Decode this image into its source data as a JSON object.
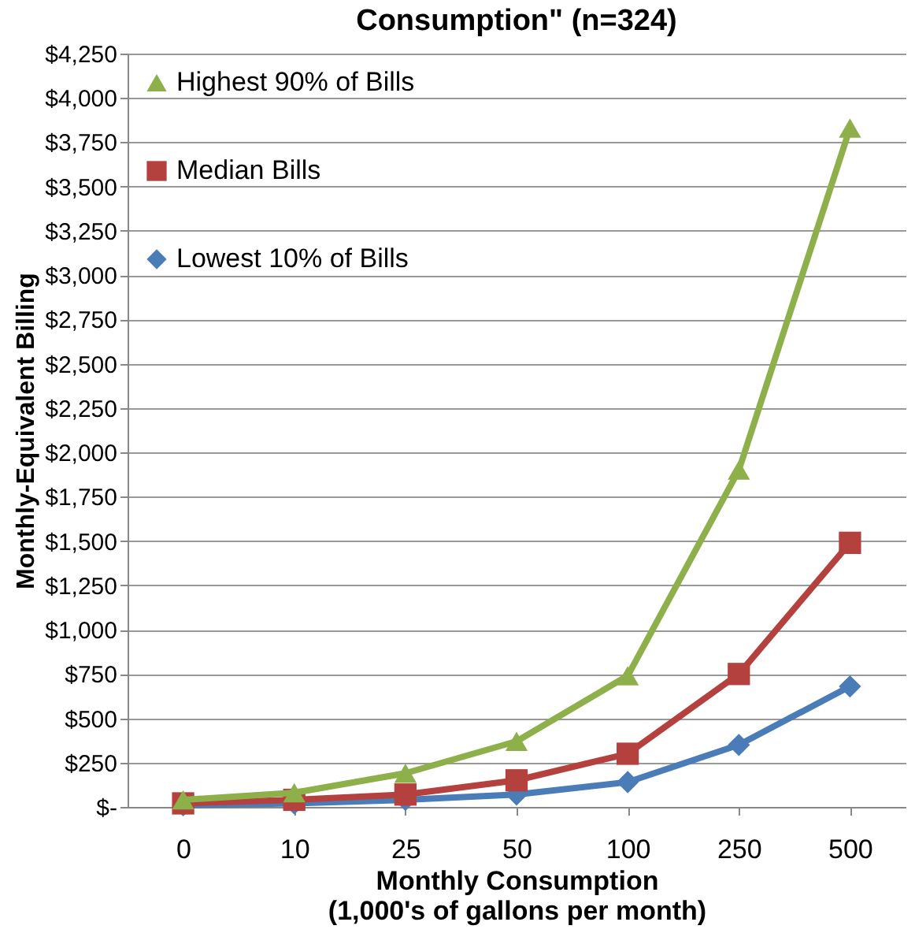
{
  "chart_data": {
    "type": "line",
    "title": "Consumption\" (n=324)",
    "xlabel": "Monthly Consumption\n(1,000's of gallons per month)",
    "ylabel": "Monthly-Equivalent Billing",
    "categories": [
      "0",
      "10",
      "25",
      "50",
      "100",
      "250",
      "500"
    ],
    "series": [
      {
        "name": "Highest 90% of Bills",
        "color": "#8eb04a",
        "marker": "triangle",
        "values": [
          40,
          80,
          190,
          370,
          740,
          1900,
          3830
        ]
      },
      {
        "name": "Median Bills",
        "color": "#b5413f",
        "marker": "square",
        "values": [
          20,
          40,
          70,
          150,
          300,
          750,
          1490
        ]
      },
      {
        "name": "Lowest 10% of Bills",
        "color": "#4a7db7",
        "marker": "diamond",
        "values": [
          10,
          20,
          40,
          70,
          140,
          350,
          680
        ]
      }
    ],
    "ylim": [
      0,
      4250
    ],
    "yticks": [
      {
        "value": 0,
        "label": "$-"
      },
      {
        "value": 250,
        "label": "$250"
      },
      {
        "value": 500,
        "label": "$500"
      },
      {
        "value": 750,
        "label": "$750"
      },
      {
        "value": 1000,
        "label": "$1,000"
      },
      {
        "value": 1250,
        "label": "$1,250"
      },
      {
        "value": 1500,
        "label": "$1,500"
      },
      {
        "value": 1750,
        "label": "$1,750"
      },
      {
        "value": 2000,
        "label": "$2,000"
      },
      {
        "value": 2250,
        "label": "$2,250"
      },
      {
        "value": 2500,
        "label": "$2,500"
      },
      {
        "value": 2750,
        "label": "$2,750"
      },
      {
        "value": 3000,
        "label": "$3,000"
      },
      {
        "value": 3250,
        "label": "$3,250"
      },
      {
        "value": 3500,
        "label": "$3,500"
      },
      {
        "value": 3750,
        "label": "$3,750"
      },
      {
        "value": 4000,
        "label": "$4,000"
      },
      {
        "value": 4250,
        "label": "$4,250"
      }
    ],
    "grid": "y",
    "legend": "top left",
    "line_style": "solid"
  }
}
